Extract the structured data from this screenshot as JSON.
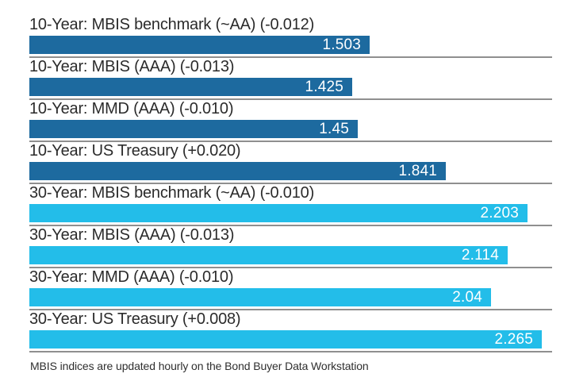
{
  "chart_data": {
    "type": "bar",
    "orientation": "horizontal",
    "title": "",
    "xlabel": "",
    "ylabel": "",
    "xlim": [
      0,
      2.31
    ],
    "grid": true,
    "series": [
      {
        "name": "10-Year",
        "color": "#1d6a9f"
      },
      {
        "name": "30-Year",
        "color": "#23bde9"
      }
    ],
    "rows": [
      {
        "label": "10-Year: MBIS benchmark (~AA) (-0.012)",
        "value": 1.503,
        "value_label": "1.503",
        "series": "10-Year"
      },
      {
        "label": "10-Year: MBIS (AAA) (-0.013)",
        "value": 1.425,
        "value_label": "1.425",
        "series": "10-Year"
      },
      {
        "label": "10-Year: MMD (AAA) (-0.010)",
        "value": 1.45,
        "value_label": "1.45",
        "series": "10-Year"
      },
      {
        "label": "10-Year: US Treasury (+0.020)",
        "value": 1.841,
        "value_label": "1.841",
        "series": "10-Year"
      },
      {
        "label": "30-Year: MBIS benchmark (~AA) (-0.010)",
        "value": 2.203,
        "value_label": "2.203",
        "series": "30-Year"
      },
      {
        "label": "30-Year: MBIS (AAA) (-0.013)",
        "value": 2.114,
        "value_label": "2.114",
        "series": "30-Year"
      },
      {
        "label": "30-Year: MMD (AAA) (-0.010)",
        "value": 2.04,
        "value_label": "2.04",
        "series": "30-Year"
      },
      {
        "label": "30-Year: US Treasury (+0.008)",
        "value": 2.265,
        "value_label": "2.265",
        "series": "30-Year"
      }
    ],
    "colors": {
      "grid_line": "#8f8f8f",
      "label_text": "#2b2b2b",
      "value_text": "#ffffff",
      "background": "#ffffff"
    }
  },
  "caption": "MBIS indices are updated hourly on the Bond Buyer Data Workstation"
}
